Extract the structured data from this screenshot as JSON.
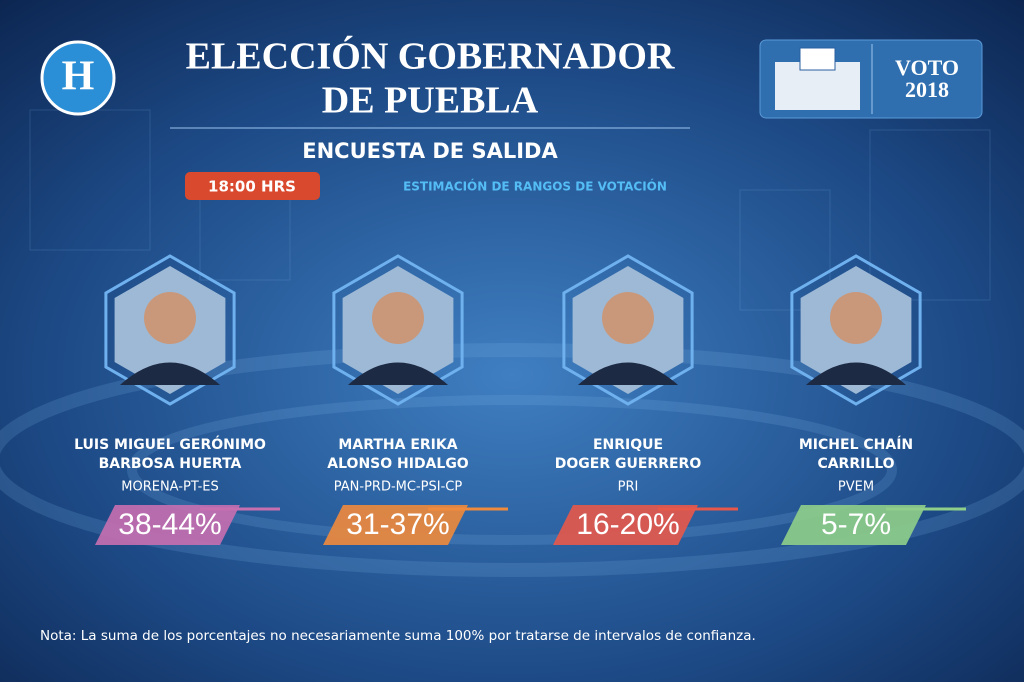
{
  "header": {
    "logo": "H",
    "title_lines": [
      "ELECCIÓN GOBERNADOR",
      "DE PUEBLA"
    ],
    "subtitle": "ENCUESTA DE SALIDA",
    "time": "18:00 HRS",
    "caption": "ESTIMACIÓN DE RANGOS DE VOTACIÓN",
    "badge_lines": [
      "VOTO",
      "2018"
    ]
  },
  "candidates": [
    {
      "name_lines": [
        "LUIS MIGUEL GERÓNIMO",
        "BARBOSA HUERTA"
      ],
      "party": "MORENA-PT-ES",
      "range": "38-44%",
      "color": "#c86fb0"
    },
    {
      "name_lines": [
        "MARTHA ERIKA",
        "ALONSO HIDALGO"
      ],
      "party": "PAN-PRD-MC-PSI-CP",
      "range": "31-37%",
      "color": "#f08a3c"
    },
    {
      "name_lines": [
        "ENRIQUE",
        "DOGER GUERRERO"
      ],
      "party": "PRI",
      "range": "16-20%",
      "color": "#e8584a"
    },
    {
      "name_lines": [
        "MICHEL CHAÍN",
        "CARRILLO"
      ],
      "party": "PVEM",
      "range": "5-7%",
      "color": "#8fcf8a"
    }
  ],
  "footer": {
    "note": "Nota: La suma de los porcentajes no necesariamente suma 100% por tratarse de intervalos de confianza."
  }
}
